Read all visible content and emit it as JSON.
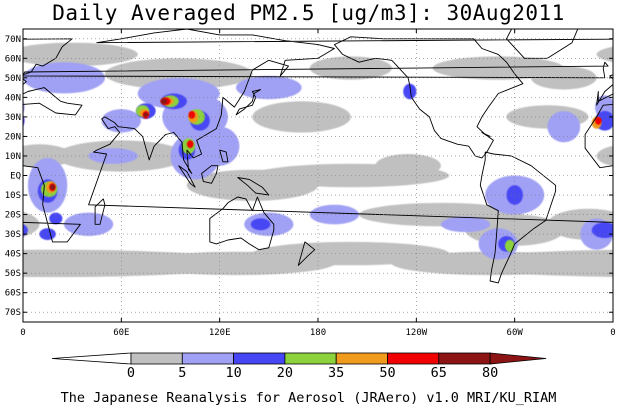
{
  "title": "Daily Averaged PM2.5 [ug/m3]: 30Aug2011",
  "footer": "The Japanese Reanalysis for Aerosol (JRAero) v1.0 MRI/KU_RIAM",
  "map": {
    "lon_min": 0,
    "lon_max": 360,
    "lat_min": -75,
    "lat_max": 75,
    "grid": "dotted",
    "lat_ticks": [
      {
        "lat": 70,
        "label": "70N"
      },
      {
        "lat": 60,
        "label": "60N"
      },
      {
        "lat": 50,
        "label": "50N"
      },
      {
        "lat": 40,
        "label": "40N"
      },
      {
        "lat": 30,
        "label": "30N"
      },
      {
        "lat": 20,
        "label": "20N"
      },
      {
        "lat": 10,
        "label": "10N"
      },
      {
        "lat": 0,
        "label": "EQ"
      },
      {
        "lat": -10,
        "label": "10S"
      },
      {
        "lat": -20,
        "label": "20S"
      },
      {
        "lat": -30,
        "label": "30S"
      },
      {
        "lat": -40,
        "label": "40S"
      },
      {
        "lat": -50,
        "label": "50S"
      },
      {
        "lat": -60,
        "label": "60S"
      },
      {
        "lat": -70,
        "label": "70S"
      }
    ],
    "lon_ticks": [
      {
        "lon": 0,
        "label": "0"
      },
      {
        "lon": 60,
        "label": "60E"
      },
      {
        "lon": 120,
        "label": "120E"
      },
      {
        "lon": 180,
        "label": "180"
      },
      {
        "lon": 240,
        "label": "120W"
      },
      {
        "lon": 300,
        "label": "60W"
      },
      {
        "lon": 360,
        "label": "0"
      }
    ]
  },
  "colorbar": {
    "levels": [
      "0",
      "5",
      "10",
      "20",
      "35",
      "50",
      "65",
      "80"
    ],
    "colors": [
      "#ffffff",
      "#c0c0c0",
      "#a0a0f4",
      "#4646f4",
      "#8cd23c",
      "#f09a1e",
      "#f00000",
      "#8c1414"
    ]
  },
  "fields": [
    {
      "level": 1,
      "blobs": [
        [
          30,
          62,
          40,
          6
        ],
        [
          95,
          52,
          45,
          8
        ],
        [
          200,
          55,
          25,
          6
        ],
        [
          290,
          55,
          40,
          6
        ],
        [
          330,
          50,
          20,
          6
        ],
        [
          60,
          10,
          40,
          8
        ],
        [
          140,
          -5,
          40,
          8
        ],
        [
          200,
          0,
          60,
          6
        ],
        [
          255,
          -20,
          50,
          6
        ],
        [
          300,
          -28,
          30,
          8
        ],
        [
          20,
          -45,
          120,
          7
        ],
        [
          130,
          -45,
          60,
          6
        ],
        [
          200,
          -40,
          60,
          6
        ],
        [
          285,
          -45,
          60,
          6
        ],
        [
          345,
          -25,
          25,
          8
        ],
        [
          170,
          30,
          30,
          8
        ],
        [
          320,
          30,
          25,
          6
        ],
        [
          10,
          10,
          20,
          6
        ],
        [
          235,
          5,
          20,
          6
        ]
      ]
    },
    {
      "level": 2,
      "blobs": [
        [
          25,
          50,
          25,
          8
        ],
        [
          95,
          42,
          25,
          8
        ],
        [
          60,
          28,
          12,
          6
        ],
        [
          105,
          30,
          20,
          12
        ],
        [
          150,
          45,
          20,
          6
        ],
        [
          15,
          -5,
          12,
          14
        ],
        [
          40,
          -25,
          15,
          6
        ],
        [
          105,
          10,
          15,
          12
        ],
        [
          120,
          15,
          12,
          10
        ],
        [
          150,
          -25,
          15,
          6
        ],
        [
          300,
          -10,
          18,
          10
        ],
        [
          290,
          -35,
          12,
          8
        ],
        [
          330,
          25,
          10,
          8
        ],
        [
          350,
          -30,
          10,
          8
        ],
        [
          190,
          -20,
          15,
          5
        ],
        [
          55,
          10,
          15,
          4
        ],
        [
          355,
          35,
          6,
          6
        ],
        [
          270,
          -25,
          15,
          4
        ]
      ]
    },
    {
      "level": 3,
      "blobs": [
        [
          92,
          38,
          8,
          4
        ],
        [
          75,
          33,
          6,
          4
        ],
        [
          108,
          28,
          6,
          5
        ],
        [
          15,
          -8,
          6,
          6
        ],
        [
          300,
          -10,
          5,
          5
        ],
        [
          295,
          -35,
          5,
          4
        ],
        [
          15,
          -30,
          5,
          3
        ],
        [
          100,
          13,
          5,
          5
        ],
        [
          145,
          -25,
          6,
          3
        ],
        [
          355,
          28,
          6,
          5
        ],
        [
          236,
          43,
          4,
          4
        ],
        [
          20,
          -22,
          4,
          3
        ],
        [
          355,
          -28,
          8,
          4
        ]
      ]
    },
    {
      "level": 4,
      "blobs": [
        [
          90,
          38,
          5,
          3
        ],
        [
          106,
          30,
          5,
          4
        ],
        [
          16,
          -7,
          5,
          4
        ],
        [
          101,
          15,
          4,
          4
        ],
        [
          73,
          33,
          4,
          3
        ],
        [
          297,
          -36,
          3,
          3
        ]
      ]
    },
    {
      "level": 5,
      "blobs": [
        [
          88,
          38,
          4,
          2
        ],
        [
          104,
          30,
          3,
          3
        ],
        [
          17,
          -6,
          3,
          3
        ],
        [
          350,
          27,
          3,
          3
        ],
        [
          74,
          32,
          3,
          2
        ]
      ]
    },
    {
      "level": 6,
      "blobs": [
        [
          87,
          38,
          3,
          2
        ],
        [
          103,
          31,
          2,
          2
        ],
        [
          18,
          -6,
          2,
          2
        ],
        [
          102,
          16,
          2,
          2
        ],
        [
          75,
          31,
          2,
          2
        ],
        [
          351,
          28,
          2,
          2
        ]
      ]
    },
    {
      "level": 7,
      "blobs": [
        [
          86,
          38,
          2,
          1.5
        ],
        [
          18,
          -6,
          1.5,
          1.5
        ],
        [
          75,
          31,
          1.5,
          1.2
        ]
      ]
    }
  ],
  "coastlines": [
    [
      [
        350,
        36
      ],
      [
        355,
        43
      ],
      [
        2,
        48
      ],
      [
        -2,
        51
      ],
      [
        5,
        53
      ],
      [
        8,
        57
      ],
      [
        12,
        56
      ],
      [
        20,
        60
      ],
      [
        24,
        66
      ],
      [
        30,
        70
      ],
      [
        45,
        68
      ],
      [
        60,
        70
      ],
      [
        80,
        73
      ],
      [
        100,
        75
      ],
      [
        120,
        72
      ],
      [
        140,
        72
      ],
      [
        160,
        69
      ],
      [
        180,
        67
      ],
      [
        190,
        65
      ],
      [
        180,
        60
      ],
      [
        160,
        59
      ],
      [
        157,
        51
      ],
      [
        162,
        56
      ],
      [
        150,
        59
      ],
      [
        140,
        54
      ],
      [
        135,
        43
      ],
      [
        129,
        35
      ],
      [
        122,
        40
      ],
      [
        121,
        31
      ],
      [
        118,
        24
      ],
      [
        110,
        20
      ],
      [
        106,
        18
      ],
      [
        109,
        11
      ],
      [
        104,
        9
      ],
      [
        100,
        13
      ],
      [
        101,
        3
      ],
      [
        103,
        1
      ],
      [
        98,
        8
      ],
      [
        97,
        17
      ],
      [
        92,
        22
      ],
      [
        87,
        21
      ],
      [
        80,
        15
      ],
      [
        77,
        8
      ],
      [
        73,
        20
      ],
      [
        68,
        24
      ],
      [
        58,
        25
      ],
      [
        56,
        27
      ],
      [
        50,
        30
      ],
      [
        48,
        29
      ],
      [
        52,
        24
      ],
      [
        56,
        25
      ],
      [
        59,
        22
      ],
      [
        53,
        16
      ],
      [
        45,
        13
      ],
      [
        43,
        12
      ],
      [
        51,
        11
      ],
      [
        40,
        -15
      ],
      [
        35,
        -25
      ],
      [
        27,
        -34
      ],
      [
        18,
        -34
      ],
      [
        12,
        -15
      ],
      [
        13,
        -5
      ],
      [
        9,
        4
      ],
      [
        0,
        5
      ],
      [
        -8,
        4
      ],
      [
        -17,
        14
      ],
      [
        -17,
        21
      ],
      [
        -10,
        30
      ],
      [
        -6,
        36
      ],
      [
        10,
        37
      ],
      [
        20,
        32
      ],
      [
        32,
        31
      ],
      [
        36,
        36
      ],
      [
        27,
        37
      ],
      [
        23,
        38
      ],
      [
        20,
        40
      ],
      [
        13,
        45
      ],
      [
        8,
        44
      ],
      [
        3,
        43
      ],
      [
        -9,
        38
      ],
      [
        -9,
        43
      ],
      [
        350,
        36
      ]
    ],
    [
      [
        200,
        60
      ],
      [
        205,
        58
      ],
      [
        215,
        60
      ],
      [
        225,
        59
      ],
      [
        235,
        50
      ],
      [
        236,
        46
      ],
      [
        237,
        40
      ],
      [
        242,
        34
      ],
      [
        248,
        30
      ],
      [
        251,
        23
      ],
      [
        255,
        19
      ],
      [
        265,
        16
      ],
      [
        272,
        15
      ],
      [
        276,
        10
      ],
      [
        280,
        9
      ],
      [
        283,
        12
      ],
      [
        287,
        18
      ],
      [
        282,
        21
      ],
      [
        277,
        25
      ],
      [
        280,
        30
      ],
      [
        284,
        35
      ],
      [
        290,
        42
      ],
      [
        296,
        44
      ],
      [
        305,
        47
      ],
      [
        300,
        52
      ],
      [
        295,
        58
      ],
      [
        290,
        62
      ],
      [
        280,
        65
      ],
      [
        275,
        70
      ],
      [
        255,
        70
      ],
      [
        240,
        70
      ],
      [
        220,
        70
      ],
      [
        200,
        71
      ],
      [
        190,
        67
      ],
      [
        195,
        62
      ],
      [
        200,
        60
      ]
    ],
    [
      [
        282,
        12
      ],
      [
        287,
        11
      ],
      [
        298,
        10
      ],
      [
        310,
        5
      ],
      [
        325,
        -5
      ],
      [
        325,
        -8
      ],
      [
        319,
        -23
      ],
      [
        312,
        -27
      ],
      [
        300,
        -35
      ],
      [
        297,
        -41
      ],
      [
        292,
        -50
      ],
      [
        290,
        -55
      ],
      [
        285,
        -54
      ],
      [
        286,
        -48
      ],
      [
        288,
        -40
      ],
      [
        289,
        -30
      ],
      [
        290,
        -18
      ],
      [
        283,
        -15
      ],
      [
        279,
        -5
      ],
      [
        280,
        0
      ],
      [
        282,
        8
      ],
      [
        282,
        12
      ]
    ],
    [
      [
        114,
        -22
      ],
      [
        114,
        -34
      ],
      [
        118,
        -35
      ],
      [
        125,
        -33
      ],
      [
        133,
        -32
      ],
      [
        138,
        -35
      ],
      [
        144,
        -38
      ],
      [
        150,
        -37
      ],
      [
        153,
        -28
      ],
      [
        153,
        -25
      ],
      [
        147,
        -19
      ],
      [
        143,
        -11
      ],
      [
        140,
        -18
      ],
      [
        136,
        -12
      ],
      [
        131,
        -11
      ],
      [
        125,
        -14
      ],
      [
        122,
        -17
      ],
      [
        114,
        -22
      ]
    ],
    [
      [
        44,
        -25
      ],
      [
        47,
        -25
      ],
      [
        50,
        -15
      ],
      [
        49,
        -12
      ],
      [
        44,
        -16
      ],
      [
        44,
        -25
      ]
    ],
    [
      [
        -5,
        50
      ],
      [
        0,
        51
      ],
      [
        1,
        53
      ],
      [
        -3,
        56
      ],
      [
        -5,
        58
      ],
      [
        -6,
        55
      ],
      [
        -5,
        50
      ]
    ],
    [
      [
        130,
        31
      ],
      [
        132,
        34
      ],
      [
        136,
        35
      ],
      [
        140,
        36
      ],
      [
        142,
        40
      ],
      [
        140,
        43
      ],
      [
        145,
        44
      ],
      [
        141,
        42
      ],
      [
        140,
        38
      ],
      [
        135,
        34
      ],
      [
        130,
        31
      ]
    ],
    [
      [
        95,
        5
      ],
      [
        100,
        2
      ],
      [
        105,
        -6
      ],
      [
        102,
        -4
      ],
      [
        95,
        5
      ]
    ],
    [
      [
        109,
        1
      ],
      [
        115,
        5
      ],
      [
        119,
        5
      ],
      [
        118,
        1
      ],
      [
        115,
        -4
      ],
      [
        110,
        -3
      ],
      [
        109,
        1
      ]
    ],
    [
      [
        131,
        -1
      ],
      [
        138,
        -2
      ],
      [
        146,
        -6
      ],
      [
        150,
        -10
      ],
      [
        142,
        -9
      ],
      [
        137,
        -5
      ],
      [
        131,
        -1
      ]
    ],
    [
      [
        306,
        60
      ],
      [
        320,
        60
      ],
      [
        335,
        68
      ],
      [
        340,
        78
      ],
      [
        320,
        82
      ],
      [
        300,
        78
      ],
      [
        295,
        70
      ],
      [
        306,
        60
      ]
    ],
    [
      [
        172,
        -34
      ],
      [
        178,
        -38
      ],
      [
        174,
        -41
      ],
      [
        168,
        -46
      ],
      [
        172,
        -34
      ]
    ],
    [
      [
        120,
        13
      ],
      [
        124,
        12
      ],
      [
        125,
        7
      ],
      [
        122,
        7
      ],
      [
        120,
        13
      ]
    ],
    [
      [
        280,
        22
      ],
      [
        285,
        20
      ],
      [
        282,
        21
      ],
      [
        280,
        22
      ]
    ]
  ]
}
